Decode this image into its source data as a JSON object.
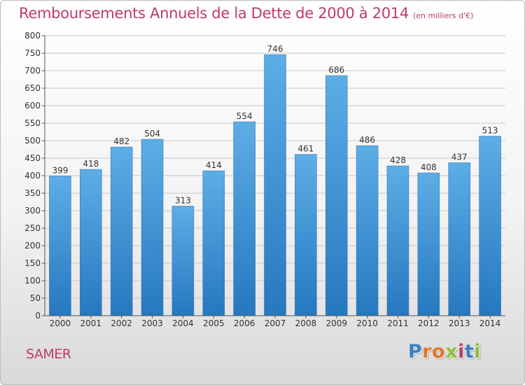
{
  "header": {
    "title": "Remboursements Annuels de la Dette de 2000 à 2014",
    "unit": "(en milliers d'€)"
  },
  "footer": {
    "city": "SAMER",
    "logo_letters": [
      "P",
      "r",
      "o",
      "x",
      "i",
      "t",
      "i"
    ],
    "logo_colors": [
      "#3a7fc4",
      "#e0782a",
      "#e0782a",
      "#8dbf3a",
      "#c0396b",
      "#3a7fc4",
      "#8dbf3a"
    ]
  },
  "colors": {
    "bar_light": "#5dade6",
    "bar_dark": "#2678bf",
    "grid": "#c8c8c8",
    "axis_text": "#333333",
    "accent": "#c0396b"
  },
  "chart_data": {
    "type": "bar",
    "title": "Remboursements Annuels de la Dette de 2000 à 2014",
    "categories": [
      "2000",
      "2001",
      "2002",
      "2003",
      "2004",
      "2005",
      "2006",
      "2007",
      "2008",
      "2009",
      "2010",
      "2011",
      "2012",
      "2013",
      "2014"
    ],
    "values": [
      399,
      418,
      482,
      504,
      313,
      414,
      554,
      746,
      461,
      686,
      486,
      428,
      408,
      437,
      513
    ],
    "ylim": [
      0,
      800
    ],
    "yticks": [
      0,
      50,
      100,
      150,
      200,
      250,
      300,
      350,
      400,
      450,
      500,
      550,
      600,
      650,
      700,
      750,
      800
    ],
    "grid": true,
    "legend": "none"
  }
}
